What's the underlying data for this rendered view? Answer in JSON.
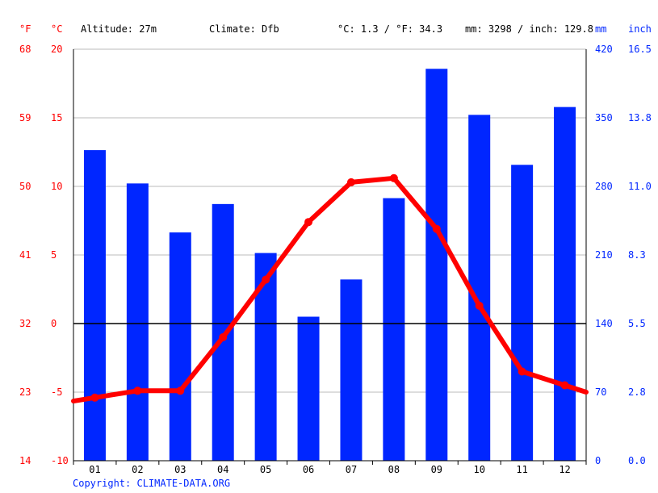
{
  "header": {
    "unit_f": "°F",
    "unit_c": "°C",
    "altitude": "Altitude: 27m",
    "climate": "Climate: Dfb",
    "temp_avg": "°C: 1.3 / °F: 34.3",
    "precip_total": "mm: 3298 / inch: 129.8",
    "unit_mm": "mm",
    "unit_inch": "inch"
  },
  "copyright": "Copyright: CLIMATE-DATA.ORG",
  "colors": {
    "temperature": "#ff0000",
    "precipitation": "#0026ff",
    "grid": "#bbbbbb",
    "zero": "#000000"
  },
  "chart_data": {
    "type": "bar",
    "categories": [
      "01",
      "02",
      "03",
      "04",
      "05",
      "06",
      "07",
      "08",
      "09",
      "10",
      "11",
      "12"
    ],
    "series": [
      {
        "type": "bar",
        "axis": "right",
        "unit": "mm",
        "values": [
          317,
          283,
          233,
          262,
          212,
          147,
          185,
          268,
          400,
          353,
          302,
          361
        ]
      },
      {
        "type": "line",
        "axis": "left",
        "unit": "°C",
        "values": [
          -5.4,
          -4.9,
          -4.9,
          -1.0,
          3.2,
          7.4,
          10.3,
          10.6,
          6.9,
          1.3,
          -3.5,
          -4.5
        ]
      }
    ],
    "left_axis_c": {
      "ticks": [
        20,
        15,
        10,
        5,
        0,
        -5,
        -10
      ],
      "ylim": [
        -10,
        20
      ]
    },
    "left_axis_f": {
      "ticks": [
        68,
        59,
        50,
        41,
        32,
        23,
        14
      ]
    },
    "right_axis_mm": {
      "ticks": [
        420,
        350,
        280,
        210,
        140,
        70,
        0
      ],
      "ylim": [
        0,
        420
      ]
    },
    "right_axis_inch": {
      "ticks": [
        "16.5",
        "13.8",
        "11.0",
        "8.3",
        "5.5",
        "2.8",
        "0.0"
      ]
    },
    "grid": true
  }
}
